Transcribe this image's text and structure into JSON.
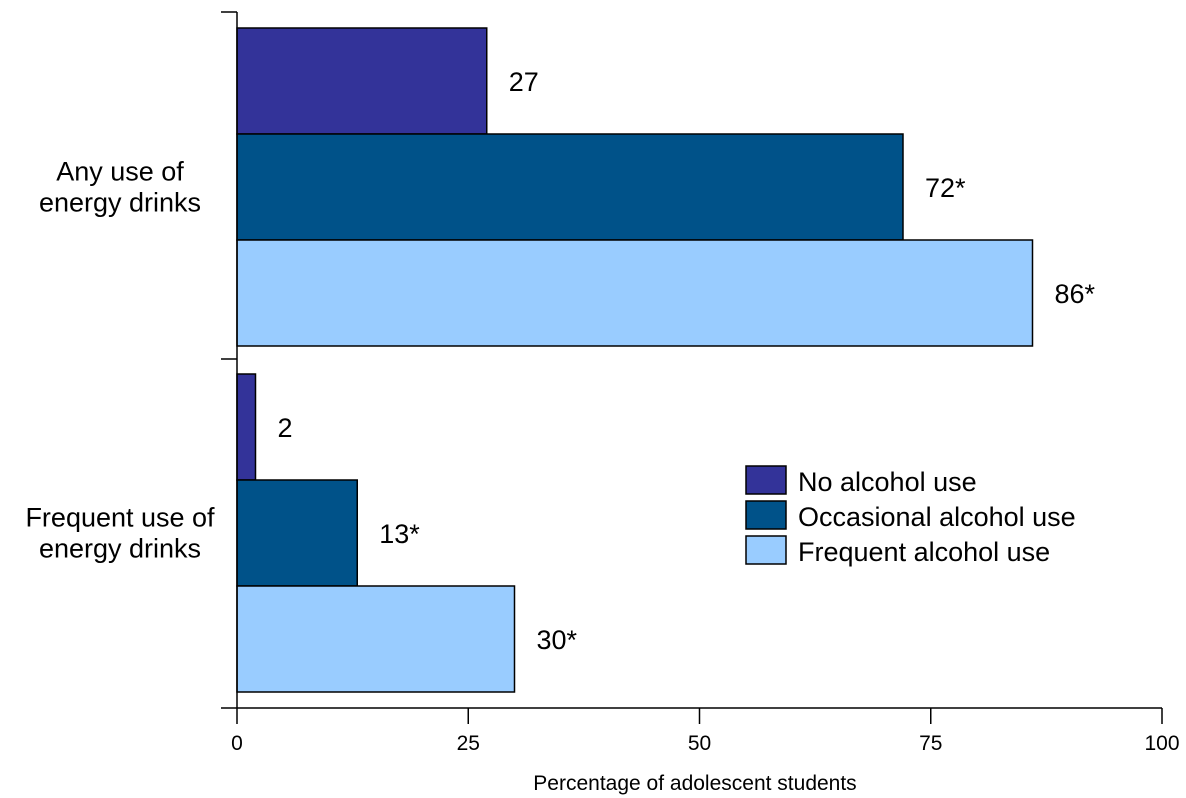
{
  "chart_data": {
    "type": "bar",
    "orientation": "horizontal",
    "categories": [
      [
        "Any use of",
        "energy drinks"
      ],
      [
        "Frequent use of",
        "energy drinks"
      ]
    ],
    "series": [
      {
        "name": "No alcohol use",
        "color": "#333399",
        "values": [
          27,
          2
        ],
        "labels": [
          "27",
          "2"
        ]
      },
      {
        "name": "Occasional alcohol use",
        "color": "#005289",
        "values": [
          72,
          13
        ],
        "labels": [
          "72*",
          "13*"
        ]
      },
      {
        "name": "Frequent alcohol use",
        "color": "#99ccff",
        "values": [
          86,
          30
        ],
        "labels": [
          "86*",
          "30*"
        ]
      }
    ],
    "xlabel": "Percentage of adolescent students",
    "ylabel": "",
    "xlim": [
      0,
      100
    ],
    "xticks": [
      0,
      25,
      50,
      75,
      100
    ],
    "grid": false,
    "legend_position": "right"
  }
}
